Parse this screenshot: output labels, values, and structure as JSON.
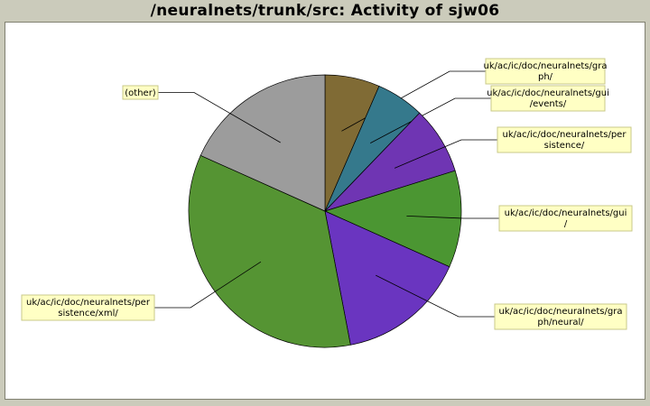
{
  "chart_data": {
    "type": "pie",
    "title": "/neuralnets/trunk/src: Activity of sjw06",
    "slices": [
      {
        "label": "uk/ac/ic/doc/neuralnets/graph/",
        "lines": [
          "uk/ac/ic/doc/neuralnets/gra",
          "ph/"
        ],
        "value": 6.5,
        "color": "#806b35"
      },
      {
        "label": "uk/ac/ic/doc/neuralnets/gui/events/",
        "lines": [
          "uk/ac/ic/doc/neuralnets/gui",
          "/events/"
        ],
        "value": 5.7,
        "color": "#35798c"
      },
      {
        "label": "uk/ac/ic/doc/neuralnets/persistence/",
        "lines": [
          "uk/ac/ic/doc/neuralnets/per",
          "sistence/"
        ],
        "value": 8.0,
        "color": "#6f35b3"
      },
      {
        "label": "uk/ac/ic/doc/neuralnets/gui/",
        "lines": [
          "uk/ac/ic/doc/neuralnets/gui",
          "/"
        ],
        "value": 11.5,
        "color": "#4b9632"
      },
      {
        "label": "uk/ac/ic/doc/neuralnets/graph/neural/",
        "lines": [
          "uk/ac/ic/doc/neuralnets/gra",
          "ph/neural/"
        ],
        "value": 15.3,
        "color": "#6a35c0"
      },
      {
        "label": "uk/ac/ic/doc/neuralnets/persistence/xml/",
        "lines": [
          "uk/ac/ic/doc/neuralnets/per",
          "sistence/xml/"
        ],
        "value": 34.7,
        "color": "#559433"
      },
      {
        "label": "(other)",
        "lines": [
          "(other)"
        ],
        "value": 18.3,
        "color": "#9c9c9c"
      }
    ]
  }
}
